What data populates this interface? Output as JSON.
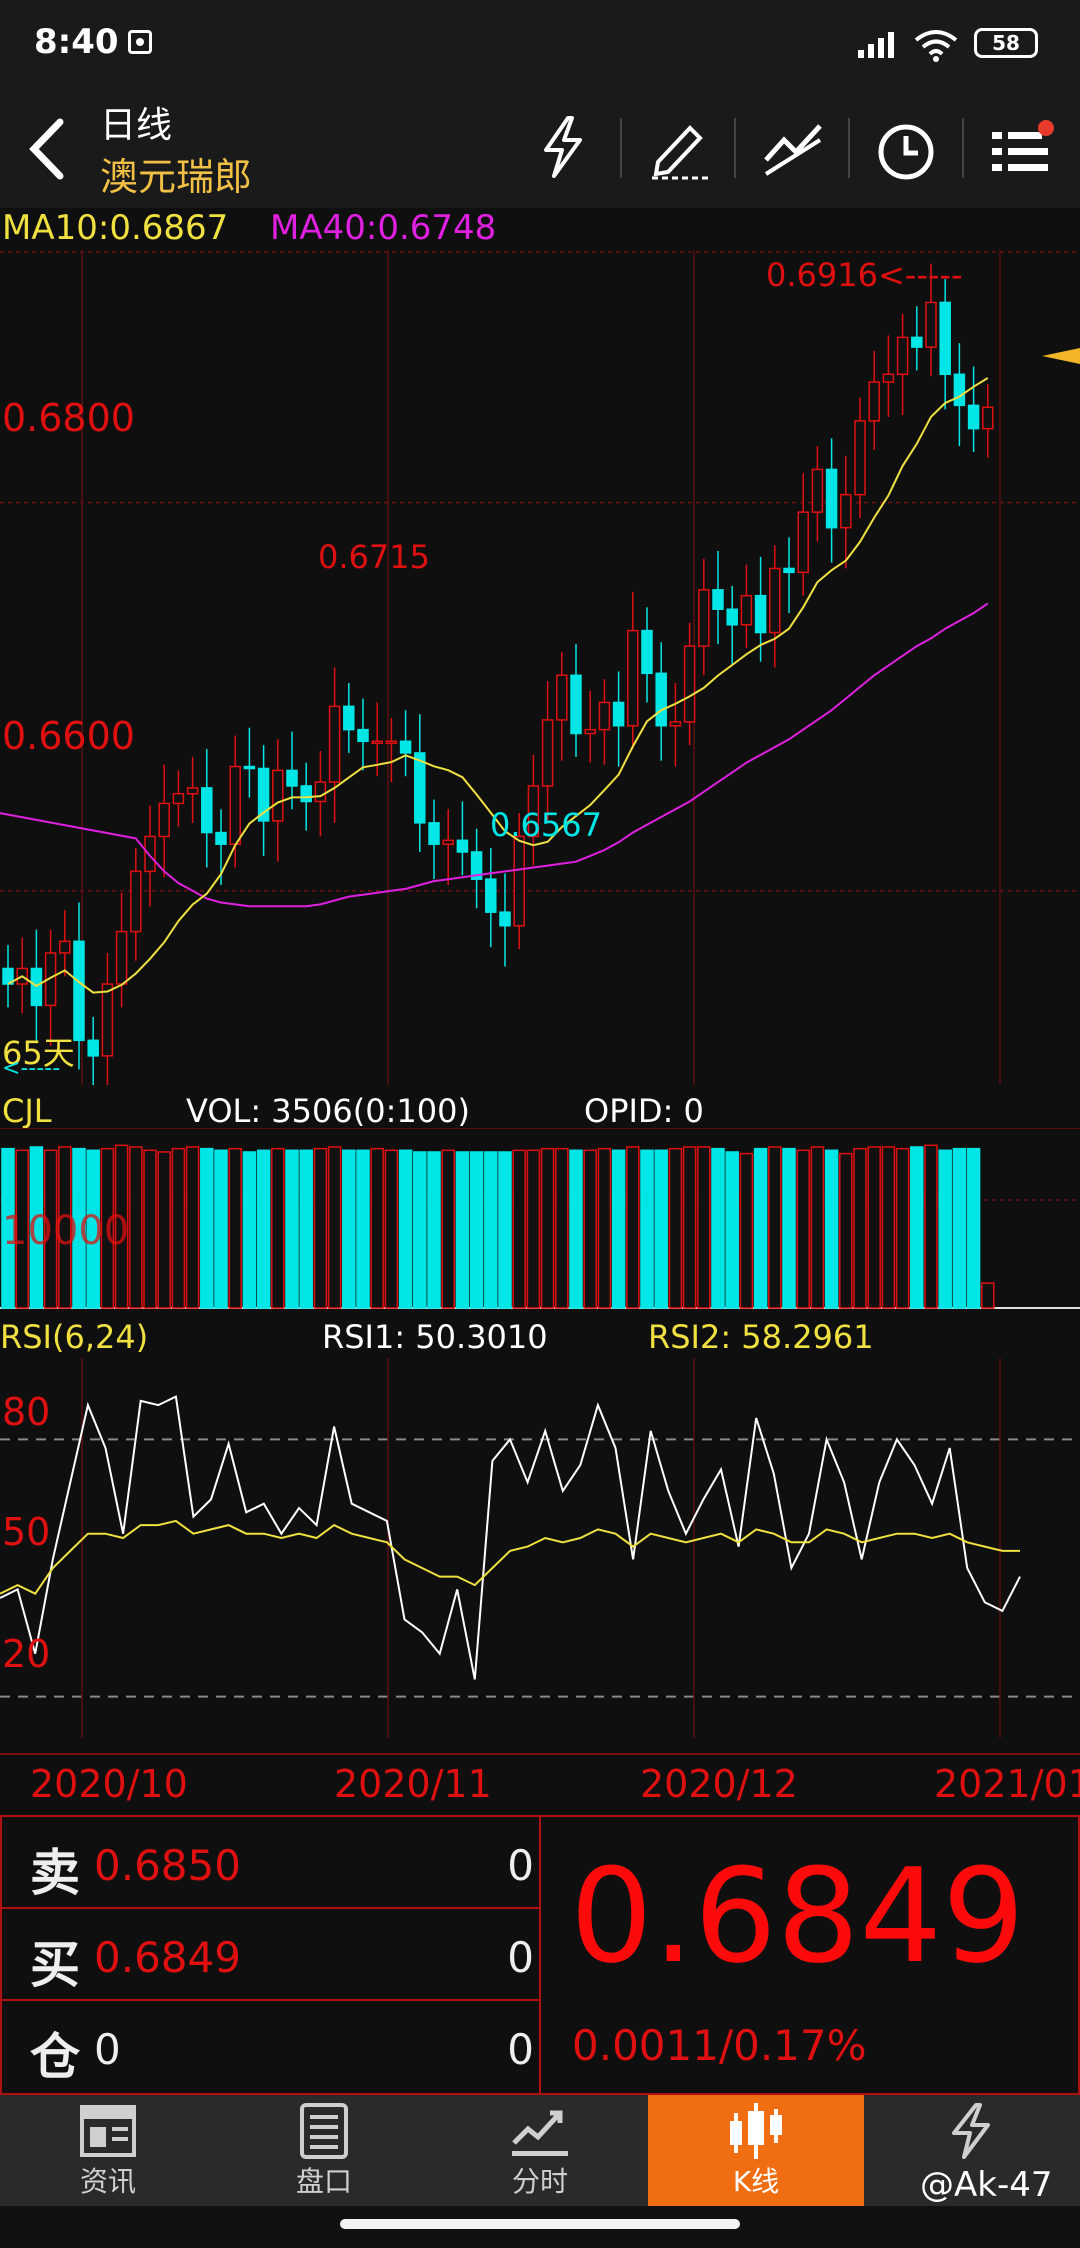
{
  "status_bar": {
    "time": "8:40",
    "battery": "58"
  },
  "header": {
    "title": "日线",
    "subtitle": "澳元瑞郎"
  },
  "ma_legend": {
    "ma10": "MA10:0.6867",
    "ma40": "MA40:0.6748"
  },
  "price_axis": {
    "p1": "0.6800",
    "p2": "0.6600"
  },
  "annotations": {
    "high": "0.6916<-----",
    "peak": "0.6715",
    "low": "0.6567",
    "days": "65天",
    "days_arrow": "<-----"
  },
  "volume_panel": {
    "name": "CJL",
    "vol": "VOL: 3506(0:100)",
    "opid": "OPID: 0",
    "level": "10000"
  },
  "rsi_panel": {
    "name": "RSI(6,24)",
    "rsi1": "RSI1: 50.3010",
    "rsi2": "RSI2: 58.2961",
    "l80": "80",
    "l50": "50",
    "l20": "20"
  },
  "date_axis": [
    "2020/10",
    "2020/11",
    "2020/12",
    "2021/01"
  ],
  "quote": {
    "sell_label": "卖",
    "sell_price": "0.6850",
    "sell_qty": "0",
    "buy_label": "买",
    "buy_price": "0.6849",
    "buy_qty": "0",
    "pos_label": "仓",
    "pos_value": "0",
    "pos_qty": "0",
    "last_price": "0.6849",
    "change": "0.0011/0.17%"
  },
  "tabs": [
    {
      "label": "资讯",
      "icon": "news-icon"
    },
    {
      "label": "盘口",
      "icon": "orderbook-icon"
    },
    {
      "label": "分时",
      "icon": "timeshare-icon"
    },
    {
      "label": "K线",
      "icon": "candlestick-icon"
    },
    {
      "label": "闪",
      "icon": "flash-icon"
    }
  ],
  "watermark": "@Ak-47",
  "colors": {
    "up": "#e01010",
    "down": "#00e5e5",
    "ma10": "#f0e040",
    "ma40": "#e020e0",
    "accent": "#f06d12",
    "rsi_fast": "#ffffff",
    "rsi_slow": "#f0e040"
  },
  "chart_data": {
    "type": "candlestick",
    "period": "daily",
    "x_ticks": [
      "2020/10",
      "2020/11",
      "2020/12",
      "2021/01"
    ],
    "ylim": [
      0.65,
      0.693
    ],
    "price_ticks": [
      0.68,
      0.66
    ],
    "marked_high": 0.6916,
    "marked_low": 0.6567,
    "marked_peak": 0.6715,
    "closes": [
      0.6552,
      0.656,
      0.6541,
      0.6568,
      0.6574,
      0.6523,
      0.6515,
      0.6552,
      0.6579,
      0.661,
      0.6628,
      0.6645,
      0.665,
      0.6653,
      0.663,
      0.6624,
      0.6664,
      0.6663,
      0.6636,
      0.6662,
      0.6654,
      0.6646,
      0.6656,
      0.6695,
      0.6683,
      0.6677,
      0.6677,
      0.6677,
      0.6671,
      0.6635,
      0.6624,
      0.6626,
      0.662,
      0.6606,
      0.6589,
      0.6582,
      0.6628,
      0.6654,
      0.6688,
      0.6711,
      0.6681,
      0.6683,
      0.6697,
      0.6685,
      0.6734,
      0.6712,
      0.6685,
      0.6687,
      0.6726,
      0.6755,
      0.6745,
      0.6737,
      0.6752,
      0.6733,
      0.6766,
      0.6764,
      0.6795,
      0.6817,
      0.6787,
      0.6804,
      0.6842,
      0.6862,
      0.6866,
      0.6885,
      0.688,
      0.6903,
      0.6866,
      0.685,
      0.6838,
      0.6849
    ],
    "volumes_pct": [
      96,
      95,
      97,
      95,
      97,
      96,
      95,
      96,
      98,
      97,
      95,
      94,
      96,
      97,
      96,
      95,
      96,
      94,
      95,
      96,
      95,
      95,
      96,
      97,
      95,
      95,
      96,
      95,
      95,
      94,
      94,
      95,
      94,
      94,
      94,
      94,
      95,
      95,
      96,
      96,
      95,
      95,
      96,
      95,
      97,
      95,
      95,
      96,
      97,
      97,
      96,
      94,
      93,
      96,
      97,
      96,
      95,
      97,
      95,
      93,
      96,
      97,
      97,
      96,
      97,
      98,
      95,
      96,
      96,
      15
    ],
    "volume_label": "VOL: 3506(0:100)",
    "volume_ticks": [
      10000
    ],
    "rsi_levels": [
      80,
      50,
      20
    ],
    "rsi1": [
      43,
      45,
      30,
      52,
      70,
      88,
      78,
      58,
      89,
      88,
      90,
      62,
      66,
      79,
      63,
      65,
      58,
      64,
      60,
      83,
      65,
      63,
      61,
      38,
      35,
      30,
      45,
      24,
      75,
      80,
      70,
      82,
      68,
      74,
      88,
      78,
      52,
      82,
      68,
      58,
      66,
      73,
      55,
      85,
      72,
      50,
      58,
      80,
      70,
      52,
      70,
      80,
      74,
      65,
      78,
      50,
      42,
      40,
      48
    ],
    "rsi2": [
      44,
      46,
      44,
      50,
      54,
      58,
      58,
      57,
      60,
      60,
      61,
      58,
      59,
      60,
      58,
      58,
      57,
      58,
      57,
      60,
      58,
      57,
      56,
      52,
      50,
      48,
      48,
      46,
      50,
      54,
      55,
      57,
      56,
      57,
      59,
      58,
      55,
      58,
      57,
      56,
      57,
      58,
      56,
      59,
      58,
      56,
      56,
      59,
      58,
      56,
      57,
      58,
      58,
      57,
      58,
      56,
      55,
      54,
      54
    ],
    "ma10_color": "#f0e040",
    "ma40_color": "#e020e0",
    "ma40": [
      0.6627,
      0.6618,
      0.661,
      0.6604,
      0.66,
      0.6596,
      0.6594,
      0.6593,
      0.6592,
      0.6592,
      0.6592,
      0.6592,
      0.6592,
      0.6593,
      0.6595,
      0.6597,
      0.6598,
      0.6599,
      0.66,
      0.6601,
      0.6603,
      0.6605,
      0.6606,
      0.6607,
      0.6608,
      0.6609,
      0.661,
      0.6611,
      0.6612,
      0.6613,
      0.6614,
      0.6615,
      0.6618,
      0.6621,
      0.6625,
      0.663,
      0.6634,
      0.6638,
      0.6642,
      0.6646,
      0.6651,
      0.6656,
      0.6661,
      0.6666,
      0.667,
      0.6674,
      0.6678,
      0.6683,
      0.6688,
      0.6693,
      0.6699,
      0.6705,
      0.6711,
      0.6716,
      0.6721,
      0.6726,
      0.673,
      0.6735,
      0.6739,
      0.6743,
      0.6748
    ]
  }
}
